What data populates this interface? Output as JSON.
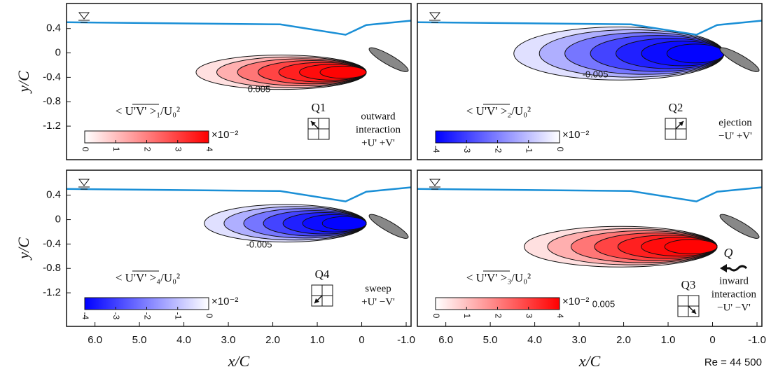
{
  "chart_data": [
    {
      "type": "contour",
      "quadrant": "Q1",
      "description": [
        "outward",
        "interaction",
        "+U' +V'"
      ],
      "colorbar_label": "< U'V' >₁/U₀²",
      "colorbar_exponent": "×10⁻²",
      "clim": [
        0,
        4
      ],
      "colorbar_ticks": [
        0,
        1,
        2,
        3,
        4
      ],
      "colors": [
        "#ffffff",
        "#ff0000"
      ],
      "contour_label": "0.005",
      "xlim": [
        6.64,
        -1.11
      ],
      "ylim": [
        -1.75,
        0.81
      ],
      "yticks": [
        0.4,
        0,
        -0.4,
        -0.8,
        -1.2
      ],
      "ylabel": "y/C"
    },
    {
      "type": "contour",
      "quadrant": "Q2",
      "description": [
        "ejection",
        "−U' +V'"
      ],
      "colorbar_label": "< U'V' >₂/U₀²",
      "colorbar_exponent": "×10⁻²",
      "clim": [
        -4,
        0
      ],
      "colorbar_ticks": [
        -4,
        -3,
        -2,
        -1,
        0
      ],
      "colors": [
        "#0000ff",
        "#ffffff"
      ],
      "contour_label": "-0.005",
      "xlim": [
        6.64,
        -1.11
      ],
      "ylim": [
        -1.75,
        0.81
      ]
    },
    {
      "type": "contour",
      "quadrant": "Q4",
      "description": [
        "sweep",
        "+U' −V'"
      ],
      "colorbar_label": "< U'V' >₄/U₀²",
      "colorbar_exponent": "×10⁻²",
      "clim": [
        -4,
        0
      ],
      "colorbar_ticks": [
        -4,
        -3,
        -2,
        -1,
        0
      ],
      "colors": [
        "#0000ff",
        "#ffffff"
      ],
      "contour_label": "-0.005",
      "xlim": [
        6.64,
        -1.11
      ],
      "ylim": [
        -1.75,
        0.81
      ],
      "yticks": [
        0.4,
        0,
        -0.4,
        -0.8,
        -1.2
      ],
      "ylabel": "y/C",
      "xticks": [
        {
          "value": 6,
          "label": "6.0"
        },
        {
          "value": 5,
          "label": "5.0"
        },
        {
          "value": 4,
          "label": "4.0"
        },
        {
          "value": 3,
          "label": "3.0"
        },
        {
          "value": 2,
          "label": "2.0"
        },
        {
          "value": 1,
          "label": "1.0"
        },
        0,
        {
          "value": -1,
          "label": "-1.0"
        }
      ],
      "xlabel": "x/C"
    },
    {
      "type": "contour",
      "quadrant": "Q3",
      "description": [
        "inward",
        "interaction",
        "−U' −V'"
      ],
      "flow_label": "Q",
      "colorbar_label": "< U'V' >₃/U₀²",
      "colorbar_exponent": "×10⁻²",
      "clim": [
        0,
        4
      ],
      "colorbar_ticks": [
        0,
        1,
        2,
        3,
        4
      ],
      "colors": [
        "#ffffff",
        "#ff0000"
      ],
      "contour_label": "0.005",
      "xlim": [
        6.64,
        -1.11
      ],
      "ylim": [
        -1.75,
        0.81
      ],
      "xticks": [
        {
          "value": 6,
          "label": "6.0"
        },
        {
          "value": 5,
          "label": "5.0"
        },
        {
          "value": 4,
          "label": "4.0"
        },
        {
          "value": 3,
          "label": "3.0"
        },
        {
          "value": 2,
          "label": "2.0"
        },
        {
          "value": 1,
          "label": "1.0"
        },
        0,
        {
          "value": -1,
          "label": "-1.0"
        }
      ],
      "xlabel": "x/C",
      "note": "Re = 44 500"
    }
  ]
}
